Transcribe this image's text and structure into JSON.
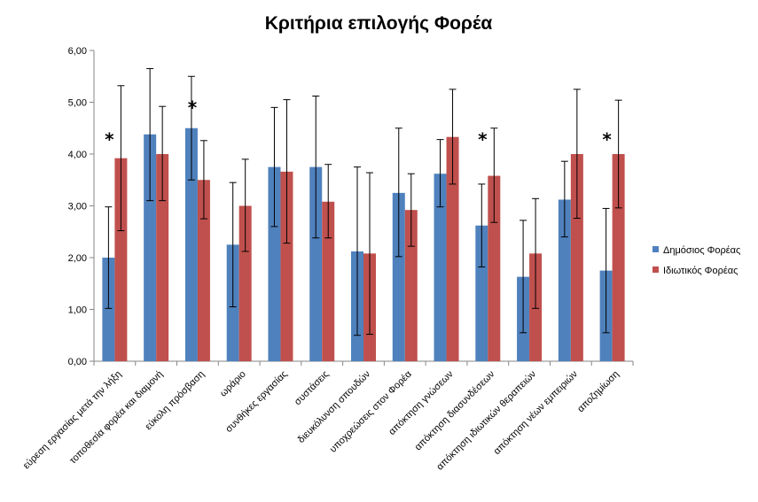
{
  "chart_data": {
    "type": "bar",
    "title": "Κριτήρια επιλογής Φορέα",
    "xlabel": "",
    "ylabel": "",
    "ylim": [
      0,
      6
    ],
    "yticks": [
      "0,00",
      "1,00",
      "2,00",
      "3,00",
      "4,00",
      "5,00",
      "6,00"
    ],
    "ytick_values": [
      0,
      1,
      2,
      3,
      4,
      5,
      6
    ],
    "grid": false,
    "legend_position": "right",
    "error_bars": true,
    "categories": [
      "εύρεση εργασίας μετά την λήξη",
      "τοποθεσία φορέα και διαμονή",
      "εύκολη πρόσβαση",
      "ωράριο",
      "συνθήκες εργασίας",
      "συστάσεις",
      "διευκόλυνση σπουδών",
      "υποχρεώσεις στον Φορέα",
      "απόκτηση γνώσεων",
      "απόκτηση διασυνδέσεων",
      "απόκτηση ιδιωτικών θεραπειών",
      "απόκτηση νέων εμπειριών",
      "αποζημίωση"
    ],
    "series": [
      {
        "name": "Δημόσιος Φορέας",
        "color": "#4F81BD",
        "values": [
          2.0,
          4.38,
          4.5,
          2.25,
          3.75,
          3.75,
          2.12,
          3.25,
          3.62,
          2.62,
          1.63,
          3.12,
          1.75
        ],
        "err_low": [
          1.02,
          3.1,
          3.5,
          1.05,
          2.6,
          2.38,
          0.5,
          2.02,
          2.98,
          1.82,
          0.55,
          2.4,
          0.55
        ],
        "err_high": [
          2.98,
          5.65,
          5.5,
          3.45,
          4.9,
          5.12,
          3.75,
          4.5,
          4.28,
          3.42,
          2.72,
          3.86,
          2.95
        ]
      },
      {
        "name": "Ιδιωτικός Φορέας",
        "color": "#C0504D",
        "values": [
          3.92,
          4.0,
          3.5,
          3.0,
          3.66,
          3.08,
          2.08,
          2.92,
          4.33,
          3.58,
          2.08,
          4.0,
          4.0
        ],
        "err_low": [
          2.52,
          3.1,
          2.75,
          2.12,
          2.28,
          2.38,
          0.52,
          2.22,
          3.42,
          2.68,
          1.02,
          2.76,
          2.96
        ],
        "err_high": [
          5.32,
          4.92,
          4.26,
          3.9,
          5.05,
          3.8,
          3.64,
          3.62,
          5.25,
          4.5,
          3.14,
          5.25,
          5.04
        ]
      }
    ],
    "annotations": [
      {
        "text": "*",
        "category_index": 0,
        "at_value": 4.4
      },
      {
        "text": "*",
        "category_index": 2,
        "at_value": 5.02
      },
      {
        "text": "*",
        "category_index": 9,
        "at_value": 4.4
      },
      {
        "text": "*",
        "category_index": 12,
        "at_value": 4.4
      }
    ]
  }
}
